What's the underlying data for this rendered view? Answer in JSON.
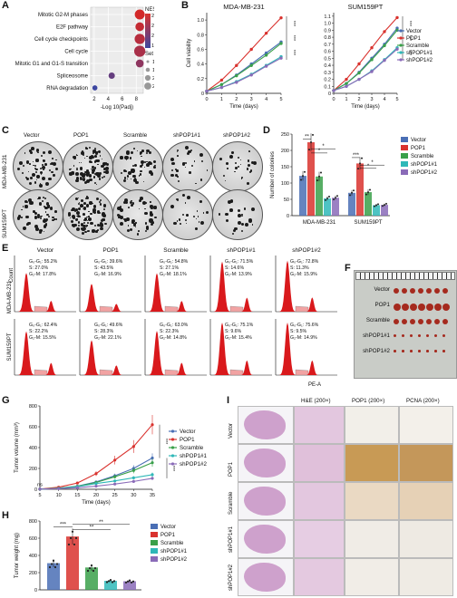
{
  "panel_labels": {
    "A": "A",
    "B": "B",
    "C": "C",
    "D": "D",
    "E": "E",
    "F": "F",
    "G": "G",
    "H": "H",
    "I": "I"
  },
  "colors": {
    "vector": "#4a6fb5",
    "pop1": "#d9322e",
    "scramble": "#3aa04a",
    "shpop1_1": "#2fb8b8",
    "shpop1_2": "#8a6bb8"
  },
  "legend_groups": [
    "Vector",
    "POP1",
    "Scramble",
    "shPOP1#1",
    "shPOP1#2"
  ],
  "panelA": {
    "xlabel": "-Log 10(Padj)",
    "xticks": [
      "2",
      "4",
      "6",
      "8"
    ],
    "nes_title": "NES",
    "nes_ticks": [
      "2.7",
      "2.4",
      "2.1",
      "1.8"
    ],
    "size_title": "Set size",
    "size_ticks": [
      "100",
      "150",
      "200",
      "250"
    ]
  },
  "panelC": {
    "columns": [
      "Vector",
      "POP1",
      "Scramble",
      "shPOP1#1",
      "shPOP1#2"
    ],
    "rows": [
      "MDA-MB-231",
      "SUM159PT"
    ]
  },
  "panelD": {
    "ylabel": "Number of colonies",
    "yticks": [
      "0",
      "50",
      "100",
      "150",
      "200",
      "250"
    ],
    "groups": [
      "MDA-MB-231",
      "SUM159PT"
    ],
    "sig": [
      "**",
      "*",
      "*",
      "***",
      "*",
      "*"
    ]
  },
  "panelE": {
    "columns": [
      "Vector",
      "POP1",
      "Scramble",
      "shPOP1#1",
      "shPOP1#2"
    ],
    "rows": [
      "MDA-MB-231",
      "SUM159PT"
    ],
    "ylabel": "Count",
    "xlabel": "PE-A",
    "stats": [
      [
        [
          "G₀-G₁: 55.2%",
          "S: 27.0%",
          "G₂-M: 17.8%"
        ],
        [
          "G₀-G₁: 39.6%",
          "S: 43.5%",
          "G₂-M: 16.9%"
        ],
        [
          "G₀-G₁: 54.8%",
          "S: 27.1%",
          "G₂-M: 18.1%"
        ],
        [
          "G₀-G₁: 71.5%",
          "S: 14.6%",
          "G₂-M: 13.9%"
        ],
        [
          "G₀-G₁: 72.8%",
          "S: 11.3%",
          "G₂-M: 15.9%"
        ]
      ],
      [
        [
          "G₀-G₁: 62.4%",
          "S: 22.2%",
          "G₂-M: 15.5%"
        ],
        [
          "G₀-G₁: 49.6%",
          "S: 28.3%",
          "G₂-M: 22.1%"
        ],
        [
          "G₀-G₁: 63.0%",
          "S: 22.3%",
          "G₂-M: 14.8%"
        ],
        [
          "G₀-G₁: 75.1%",
          "S: 9.6%",
          "G₂-M: 15.4%"
        ],
        [
          "G₀-G₁: 75.6%",
          "S: 9.5%",
          "G₂-M: 14.9%"
        ]
      ]
    ]
  },
  "panelF": {
    "rows": [
      "Vector",
      "POP1",
      "Scramble",
      "shPOP1#1",
      "shPOP1#2"
    ]
  },
  "panelH_sig": [
    "***",
    "**",
    "**"
  ],
  "panelI": {
    "headers": [
      "H&E (200×)",
      "POP1 (200×)",
      "PCNA (200×)"
    ],
    "rows": [
      "Vector",
      "POP1",
      "Scramble",
      "shPOP1#1",
      "shPOP1#2"
    ]
  },
  "chart_data": [
    {
      "type": "scatter",
      "title": "",
      "xlabel": "-Log 10(Padj)",
      "ylabel": "",
      "xlim": [
        1.5,
        9
      ],
      "categories": [
        "Mitotic G2-M phases",
        "E2F pathway",
        "Cell cycle checkpoints",
        "Cell cycle",
        "Mitotic G1 and G1-S transition",
        "Spliceosome",
        "RNA degradation"
      ],
      "x": [
        8.5,
        8.5,
        8.5,
        8.5,
        8.5,
        4.5,
        2.1
      ],
      "nes": [
        2.8,
        2.7,
        2.6,
        2.5,
        2.3,
        2.0,
        1.7
      ],
      "set_size": [
        240,
        200,
        250,
        280,
        170,
        120,
        80
      ]
    },
    {
      "type": "line",
      "title": "MDA-MB-231",
      "xlabel": "Time (days)",
      "ylabel": "Cell viability",
      "x": [
        0,
        1,
        2,
        3,
        4,
        5
      ],
      "ylim": [
        0,
        1.1
      ],
      "yticks": [
        "0",
        "0.2",
        "0.4",
        "0.6",
        "0.8",
        "1.0"
      ],
      "xticks": [
        "0",
        "1",
        "2",
        "3",
        "4",
        "5"
      ],
      "sig": [
        "***",
        "***",
        "***"
      ],
      "series": [
        {
          "name": "Vector",
          "values": [
            0.03,
            0.12,
            0.25,
            0.4,
            0.55,
            0.7
          ]
        },
        {
          "name": "POP1",
          "values": [
            0.03,
            0.18,
            0.38,
            0.6,
            0.82,
            1.03
          ]
        },
        {
          "name": "Scramble",
          "values": [
            0.03,
            0.12,
            0.24,
            0.38,
            0.52,
            0.68
          ]
        },
        {
          "name": "shPOP1#1",
          "values": [
            0.03,
            0.08,
            0.16,
            0.26,
            0.38,
            0.5
          ]
        },
        {
          "name": "shPOP1#2",
          "values": [
            0.03,
            0.08,
            0.15,
            0.25,
            0.37,
            0.48
          ]
        }
      ]
    },
    {
      "type": "line",
      "title": "SUM159PT",
      "xlabel": "Time (days)",
      "ylabel": "",
      "x": [
        0,
        1,
        2,
        3,
        4,
        5
      ],
      "ylim": [
        0,
        1.15
      ],
      "yticks": [
        "0",
        "0.1",
        "0.2",
        "0.3",
        "0.4",
        "0.5",
        "0.6",
        "0.7",
        "0.8",
        "0.9",
        "1.0",
        "1.1"
      ],
      "xticks": [
        "0",
        "1",
        "2",
        "3",
        "4",
        "5"
      ],
      "sig": [
        "***",
        "***",
        "***"
      ],
      "series": [
        {
          "name": "Vector",
          "values": [
            0.04,
            0.14,
            0.3,
            0.5,
            0.7,
            0.93
          ]
        },
        {
          "name": "POP1",
          "values": [
            0.04,
            0.2,
            0.42,
            0.65,
            0.88,
            1.08
          ]
        },
        {
          "name": "Scramble",
          "values": [
            0.04,
            0.14,
            0.29,
            0.48,
            0.68,
            0.9
          ]
        },
        {
          "name": "shPOP1#1",
          "values": [
            0.04,
            0.1,
            0.2,
            0.32,
            0.48,
            0.65
          ]
        },
        {
          "name": "shPOP1#2",
          "values": [
            0.04,
            0.1,
            0.2,
            0.31,
            0.47,
            0.63
          ]
        }
      ]
    },
    {
      "type": "bar",
      "title": "",
      "xlabel": "",
      "ylabel": "Number of colonies",
      "categories": [
        "MDA-MB-231",
        "SUM159PT"
      ],
      "ylim": [
        0,
        250
      ],
      "series": [
        {
          "name": "Vector",
          "values": [
            122,
            70
          ]
        },
        {
          "name": "POP1",
          "values": [
            225,
            160
          ]
        },
        {
          "name": "Scramble",
          "values": [
            120,
            72
          ]
        },
        {
          "name": "shPOP1#1",
          "values": [
            53,
            32
          ]
        },
        {
          "name": "shPOP1#2",
          "values": [
            55,
            33
          ]
        }
      ]
    },
    {
      "type": "line",
      "title": "",
      "xlabel": "Time (days)",
      "ylabel": "Tumor volume (mm³)",
      "x": [
        5,
        10,
        15,
        20,
        25,
        30,
        35
      ],
      "xticks": [
        "5",
        "10",
        "15",
        "20",
        "25",
        "30",
        "35"
      ],
      "ylim": [
        0,
        800
      ],
      "yticks": [
        "0",
        "200",
        "400",
        "600",
        "800"
      ],
      "sig": [
        "ns",
        "***",
        "***"
      ],
      "series": [
        {
          "name": "Vector",
          "values": [
            2,
            10,
            30,
            70,
            130,
            200,
            300
          ]
        },
        {
          "name": "POP1",
          "values": [
            2,
            20,
            60,
            150,
            280,
            410,
            620
          ]
        },
        {
          "name": "Scramble",
          "values": [
            2,
            10,
            28,
            65,
            120,
            180,
            255
          ]
        },
        {
          "name": "shPOP1#1",
          "values": [
            2,
            8,
            25,
            55,
            80,
            110,
            140
          ]
        },
        {
          "name": "shPOP1#2",
          "values": [
            2,
            6,
            15,
            30,
            50,
            75,
            105
          ]
        }
      ]
    },
    {
      "type": "bar",
      "title": "",
      "xlabel": "",
      "ylabel": "Tumor weight (mg)",
      "categories": [
        "Vector",
        "POP1",
        "Scramble",
        "shPOP1#1",
        "shPOP1#2"
      ],
      "ylim": [
        0,
        800
      ],
      "yticks": [
        "0",
        "200",
        "400",
        "600",
        "800"
      ],
      "values": [
        310,
        620,
        260,
        105,
        100
      ]
    }
  ]
}
